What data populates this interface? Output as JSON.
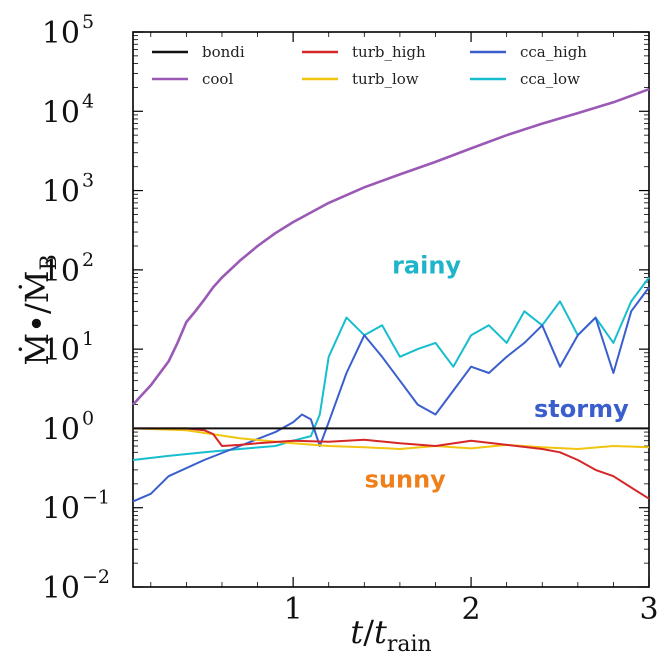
{
  "chart_data": {
    "type": "line",
    "xlabel": "t/t_rain",
    "ylabel": "Ṁ•/ṀB",
    "xlim": [
      0.1,
      3.0
    ],
    "ylim_log10": [
      -2,
      5
    ],
    "yscale": "log",
    "grid": false,
    "legend_position": "top",
    "x_ticks": [
      "1",
      "2",
      "3"
    ],
    "y_ticks": [
      {
        "base": "10",
        "exp": "5"
      },
      {
        "base": "10",
        "exp": "4"
      },
      {
        "base": "10",
        "exp": "3"
      },
      {
        "base": "10",
        "exp": "2"
      },
      {
        "base": "10",
        "exp": "1"
      },
      {
        "base": "10",
        "exp": "0"
      },
      {
        "base": "10",
        "exp": "−1"
      },
      {
        "base": "10",
        "exp": "−2"
      }
    ],
    "series": [
      {
        "name": "bondi",
        "color": "#111111",
        "x": [
          0.1,
          3.0
        ],
        "y": [
          1,
          1
        ]
      },
      {
        "name": "cool",
        "color": "#9b59b6",
        "x": [
          0.1,
          0.2,
          0.3,
          0.35,
          0.4,
          0.45,
          0.5,
          0.55,
          0.6,
          0.7,
          0.8,
          0.9,
          1.0,
          1.2,
          1.4,
          1.6,
          1.8,
          2.0,
          2.2,
          2.4,
          2.6,
          2.8,
          3.0
        ],
        "y": [
          2.0,
          3.5,
          7.0,
          12.0,
          22.0,
          30.0,
          42.0,
          60.0,
          80.0,
          130.0,
          200.0,
          290.0,
          400.0,
          700.0,
          1100.0,
          1600.0,
          2300.0,
          3400.0,
          5000.0,
          7000.0,
          9500.0,
          13000.0,
          19000.0
        ]
      },
      {
        "name": "turb_high",
        "color": "#d62728",
        "x": [
          0.1,
          0.4,
          0.5,
          0.55,
          0.6,
          0.7,
          0.8,
          1.0,
          1.2,
          1.4,
          1.6,
          1.8,
          2.0,
          2.2,
          2.4,
          2.5,
          2.6,
          2.7,
          2.8,
          2.9,
          3.0
        ],
        "y": [
          1.0,
          1.0,
          0.95,
          0.85,
          0.6,
          0.62,
          0.65,
          0.7,
          0.68,
          0.72,
          0.65,
          0.6,
          0.7,
          0.62,
          0.55,
          0.5,
          0.4,
          0.3,
          0.25,
          0.18,
          0.13
        ]
      },
      {
        "name": "turb_low",
        "color": "#f1c40f",
        "x": [
          0.1,
          0.4,
          0.7,
          1.0,
          1.2,
          1.4,
          1.6,
          1.8,
          2.0,
          2.2,
          2.4,
          2.6,
          2.8,
          3.0
        ],
        "y": [
          1.0,
          0.95,
          0.75,
          0.65,
          0.6,
          0.58,
          0.55,
          0.6,
          0.56,
          0.62,
          0.58,
          0.55,
          0.6,
          0.58
        ]
      },
      {
        "name": "cca_high",
        "color": "#3a5fcd",
        "x": [
          0.1,
          0.2,
          0.3,
          0.5,
          0.7,
          0.9,
          1.0,
          1.05,
          1.1,
          1.15,
          1.2,
          1.3,
          1.4,
          1.5,
          1.6,
          1.7,
          1.8,
          1.9,
          2.0,
          2.1,
          2.2,
          2.3,
          2.4,
          2.5,
          2.6,
          2.7,
          2.8,
          2.9,
          3.0
        ],
        "y": [
          0.12,
          0.15,
          0.25,
          0.4,
          0.6,
          0.9,
          1.2,
          1.5,
          1.3,
          0.6,
          1.2,
          5.0,
          15.0,
          8.0,
          4.0,
          2.0,
          1.5,
          3.0,
          6.0,
          5.0,
          8.0,
          12.0,
          20.0,
          6.0,
          15.0,
          25.0,
          5.0,
          30.0,
          60.0
        ]
      },
      {
        "name": "cca_low",
        "color": "#17becf",
        "x": [
          0.1,
          0.3,
          0.5,
          0.7,
          0.9,
          1.0,
          1.1,
          1.15,
          1.2,
          1.3,
          1.4,
          1.5,
          1.6,
          1.7,
          1.8,
          1.9,
          2.0,
          2.1,
          2.2,
          2.3,
          2.4,
          2.5,
          2.6,
          2.7,
          2.8,
          2.9,
          3.0
        ],
        "y": [
          0.4,
          0.45,
          0.5,
          0.55,
          0.6,
          0.7,
          0.8,
          1.5,
          8.0,
          25.0,
          15.0,
          20.0,
          8.0,
          10.0,
          12.0,
          6.0,
          15.0,
          20.0,
          12.0,
          30.0,
          20.0,
          40.0,
          15.0,
          25.0,
          12.0,
          40.0,
          80.0
        ]
      }
    ],
    "annotations": [
      {
        "text": "rainy",
        "x": 1.75,
        "y": 90,
        "color": "#1fb5c9"
      },
      {
        "text": "stormy",
        "x": 2.62,
        "y": 1.4,
        "color": "#3a5fcd"
      },
      {
        "text": "sunny",
        "x": 1.63,
        "y": 0.18,
        "color": "#ef7f1a"
      }
    ]
  }
}
